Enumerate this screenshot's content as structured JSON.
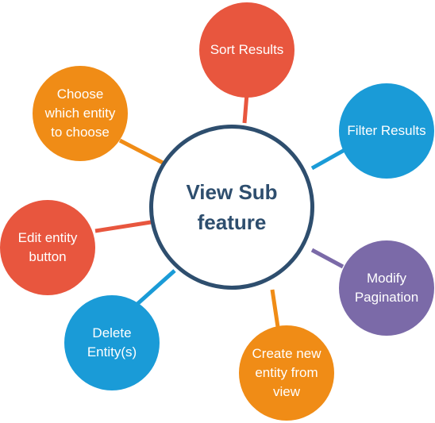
{
  "center": {
    "label": "View Sub\nfeature",
    "border_color": "#2e4e6e",
    "text_color": "#2e4e6e"
  },
  "nodes": [
    {
      "id": "sort-results",
      "label": "Sort Results",
      "color": "#e8563e"
    },
    {
      "id": "filter-results",
      "label": "Filter Results",
      "color": "#1a9bd7"
    },
    {
      "id": "modify-pagination",
      "label": "Modify\nPagination",
      "color": "#7b6aa8"
    },
    {
      "id": "create-new-entity",
      "label": "Create new\nentity from\nview",
      "color": "#f08c16"
    },
    {
      "id": "delete-entities",
      "label": "Delete\nEntity(s)",
      "color": "#1a9bd7"
    },
    {
      "id": "edit-entity-button",
      "label": "Edit entity\nbutton",
      "color": "#e8563e"
    },
    {
      "id": "choose-entity",
      "label": "Choose\nwhich entity\nto choose",
      "color": "#f08c16"
    }
  ]
}
